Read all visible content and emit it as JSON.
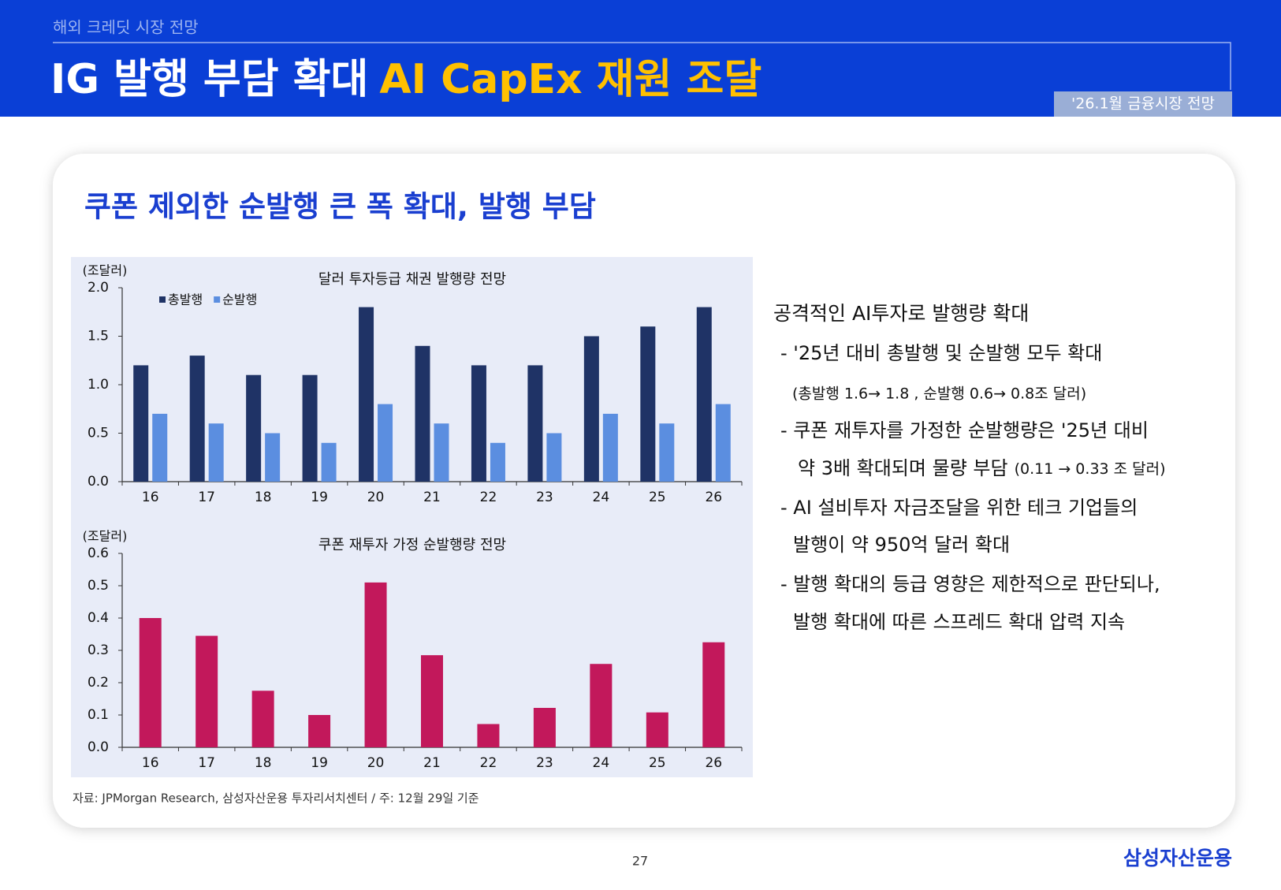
{
  "header": {
    "section": "해외 크레딧 시장 전망",
    "title_main": "IG 발행 부담 확대",
    "title_accent": "AI CapEx 재원 조달",
    "tag": "'26.1월 금융시장 전망"
  },
  "subtitle": "쿠폰 제외한 순발행 큰 폭 확대, 발행 부담",
  "chart_data": [
    {
      "type": "bar",
      "title": "달러 투자등급 채권 발행량 전망",
      "y_label": "(조달러)",
      "categories": [
        "16",
        "17",
        "18",
        "19",
        "20",
        "21",
        "22",
        "23",
        "24",
        "25",
        "26"
      ],
      "series": [
        {
          "name": "총발행",
          "color": "#1f3366",
          "values": [
            1.2,
            1.3,
            1.1,
            1.1,
            1.8,
            1.4,
            1.2,
            1.2,
            1.5,
            1.6,
            1.8
          ]
        },
        {
          "name": "순발행",
          "color": "#5b8ee0",
          "values": [
            0.7,
            0.6,
            0.5,
            0.4,
            0.8,
            0.6,
            0.4,
            0.5,
            0.7,
            0.6,
            0.8
          ]
        }
      ],
      "ylim": [
        0,
        2
      ],
      "yticks": [
        {
          "value": 0,
          "label": "0.0"
        },
        0.5,
        {
          "value": 1,
          "label": "1.0"
        },
        1.5,
        {
          "value": 2,
          "label": "2.0"
        }
      ],
      "legend": "upper left"
    },
    {
      "type": "bar",
      "title": "쿠폰 재투자 가정 순발행량 전망",
      "y_label": "(조달러)",
      "categories": [
        "16",
        "17",
        "18",
        "19",
        "20",
        "21",
        "22",
        "23",
        "24",
        "25",
        "26"
      ],
      "series": [
        {
          "color": "#c2185b",
          "values": [
            0.4,
            0.345,
            0.175,
            0.1,
            0.51,
            0.285,
            0.072,
            0.122,
            0.258,
            0.108,
            0.325
          ]
        }
      ],
      "ylim": [
        0,
        0.6
      ],
      "yticks": [
        {
          "value": 0,
          "label": "0.0"
        },
        0.1,
        0.2,
        0.3,
        0.4,
        0.5,
        0.6
      ]
    }
  ],
  "source": "자료: JPMorgan Research, 삼성자산운용 투자리서치센터 / 주: 12월 29일 기준",
  "commentary": {
    "heading": "공격적인 AI투자로 발행량 확대",
    "lines": [
      "- '25년 대비 총발행 및 순발행 모두 확대",
      "(총발행 1.6→ 1.8 , 순발행 0.6→ 0.8조 달러)",
      "- 쿠폰 재투자를 가정한 순발행량은 '25년 대비",
      "약 3배 확대되며 물량 부담",
      "(0.11 → 0.33 조 달러)",
      "- AI 설비투자 자금조달을 위한 테크 기업들의",
      "발행이 약 950억 달러 확대",
      "- 발행 확대의 등급 영향은 제한적으로 판단되나,",
      "발행 확대에 따른 스프레드 확대 압력 지속"
    ]
  },
  "footer": {
    "page": "27",
    "logo": "삼성자산운용"
  }
}
